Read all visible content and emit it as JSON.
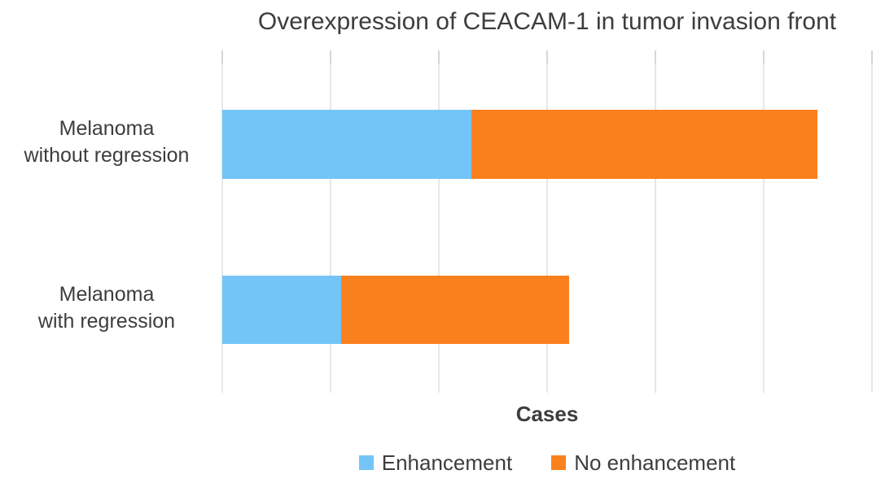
{
  "chart_data": {
    "type": "bar",
    "orientation": "horizontal",
    "stacked": true,
    "title": "Overexpression of CEACAM-1 in tumor invasion front",
    "categories": [
      "Melanoma\nwithout regression",
      "Melanoma\nwith regression"
    ],
    "series": [
      {
        "name": "Enhancement",
        "color": "#74C5F7",
        "values": [
          23,
          11
        ]
      },
      {
        "name": "No enhancement",
        "color": "#FA801E",
        "values": [
          32,
          21
        ]
      }
    ],
    "xlabel": "Cases",
    "ylabel": "",
    "xlim": [
      0,
      60
    ],
    "gridline_interval": 10,
    "x_tick_labels_visible": false,
    "grid": "vertical-only",
    "gridline_color": "#e7e7e7",
    "legend_position": "bottom",
    "text_color": "#3d3d3d",
    "background_color": "#ffffff"
  }
}
